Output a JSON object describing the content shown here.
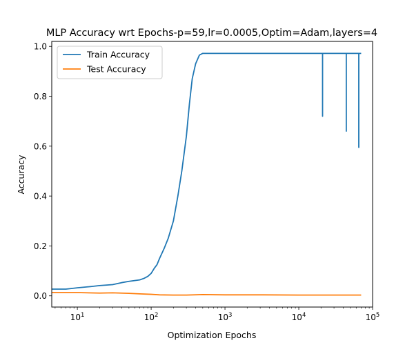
{
  "chart_data": {
    "type": "line",
    "title": "MLP Accuracy wrt Epochs-p=59,lr=0.0005,Optim=Adam,layers=4",
    "xlabel": "Optimization Epochs",
    "ylabel": "Accuracy",
    "x_scale": "log",
    "xlim": [
      4.5,
      100000
    ],
    "ylim": [
      -0.045,
      1.02
    ],
    "x_ticks": [
      {
        "value": 10,
        "base": "10",
        "exp": "1"
      },
      {
        "value": 100,
        "base": "10",
        "exp": "2"
      },
      {
        "value": 1000,
        "base": "10",
        "exp": "3"
      },
      {
        "value": 10000,
        "base": "10",
        "exp": "4"
      },
      {
        "value": 100000,
        "base": "10",
        "exp": "5"
      }
    ],
    "y_ticks": [
      {
        "value": 0.0,
        "label": "0.0"
      },
      {
        "value": 0.2,
        "label": "0.2"
      },
      {
        "value": 0.4,
        "label": "0.4"
      },
      {
        "value": 0.6,
        "label": "0.6"
      },
      {
        "value": 0.8,
        "label": "0.8"
      },
      {
        "value": 1.0,
        "label": "1.0"
      }
    ],
    "grid": false,
    "legend_position": "top-left",
    "series": [
      {
        "name": "Train Accuracy",
        "color": "#1f77b4",
        "x": [
          4.5,
          7,
          10,
          15,
          20,
          30,
          40,
          50,
          70,
          80,
          90,
          100,
          110,
          120,
          130,
          150,
          170,
          200,
          230,
          260,
          300,
          330,
          360,
          400,
          450,
          500,
          550,
          600,
          20999,
          21000,
          21001,
          43999,
          44000,
          44001,
          64999,
          65000,
          65001,
          70000
        ],
        "y": [
          0.027,
          0.027,
          0.032,
          0.037,
          0.041,
          0.045,
          0.053,
          0.058,
          0.064,
          0.07,
          0.078,
          0.09,
          0.11,
          0.125,
          0.15,
          0.19,
          0.23,
          0.3,
          0.4,
          0.5,
          0.64,
          0.77,
          0.87,
          0.93,
          0.965,
          0.972,
          0.972,
          0.972,
          0.972,
          0.72,
          0.972,
          0.972,
          0.66,
          0.972,
          0.972,
          0.595,
          0.972,
          0.972
        ]
      },
      {
        "name": "Test Accuracy",
        "color": "#ff7f0e",
        "x": [
          4.5,
          10,
          20,
          30,
          50,
          70,
          100,
          130,
          200,
          300,
          500,
          1000,
          3000,
          10000,
          30000,
          70000
        ],
        "y": [
          0.013,
          0.013,
          0.011,
          0.012,
          0.01,
          0.008,
          0.006,
          0.004,
          0.003,
          0.003,
          0.005,
          0.004,
          0.004,
          0.003,
          0.003,
          0.003
        ]
      }
    ]
  }
}
